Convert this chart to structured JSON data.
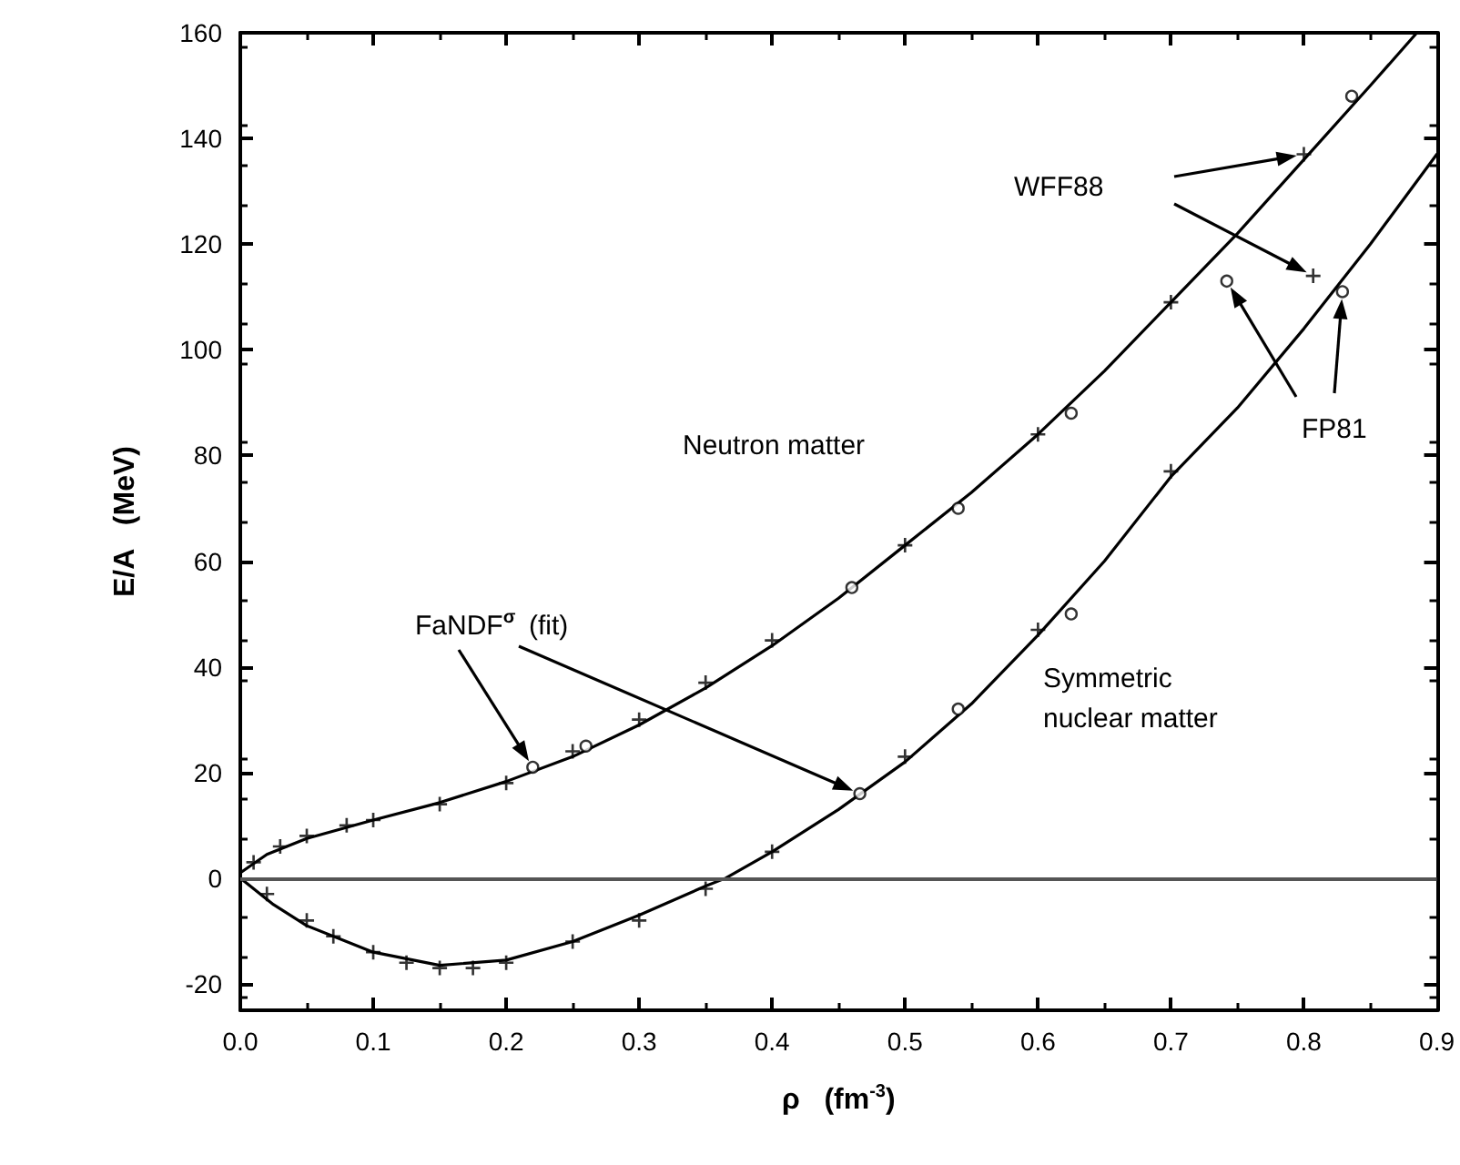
{
  "chart_data": {
    "type": "line",
    "xlabel": "ρ   (fm$^{-3}$)",
    "ylabel": "E/A   (MeV)",
    "xlim": [
      0,
      0.9
    ],
    "ylim": [
      -25,
      160
    ],
    "xticks": [
      {
        "value": 0,
        "label": "0.0"
      },
      {
        "value": 0.1,
        "label": "0.1"
      },
      {
        "value": 0.2,
        "label": "0.2"
      },
      {
        "value": 0.3,
        "label": "0.3"
      },
      {
        "value": 0.4,
        "label": "0.4"
      },
      {
        "value": 0.5,
        "label": "0.5"
      },
      {
        "value": 0.6,
        "label": "0.6"
      },
      {
        "value": 0.7,
        "label": "0.7"
      },
      {
        "value": 0.8,
        "label": "0.8"
      },
      {
        "value": 0.9,
        "label": "0.9"
      }
    ],
    "yticks": [
      -20,
      0,
      20,
      40,
      60,
      80,
      100,
      120,
      140,
      160
    ],
    "grid": false,
    "legend": false,
    "line_style": "solid",
    "annotations": [
      "Neutron matter",
      "Symmetric nuclear matter",
      "FaNDF$^{σ}$ (fit)",
      "WFF88",
      "FP81"
    ],
    "ref_lines": [
      {
        "axis": "y",
        "value": 0,
        "color": "#555555"
      }
    ],
    "series": [
      {
        "color": "#000000",
        "marker": "none",
        "x": [
          0,
          0.02,
          0.05,
          0.1,
          0.15,
          0.2,
          0.25,
          0.3,
          0.35,
          0.4,
          0.45,
          0.5,
          0.55,
          0.6,
          0.65,
          0.7,
          0.75,
          0.8,
          0.85,
          0.885
        ],
        "values": [
          1,
          4.5,
          7.5,
          11,
          14.3,
          18.3,
          23,
          29,
          36,
          44,
          53,
          63,
          73,
          84,
          96,
          109,
          122,
          136,
          150,
          160
        ]
      },
      {
        "color": "#000000",
        "marker": "none",
        "x": [
          0,
          0.025,
          0.05,
          0.1,
          0.15,
          0.2,
          0.25,
          0.3,
          0.35,
          0.365,
          0.4,
          0.45,
          0.5,
          0.55,
          0.6,
          0.65,
          0.7,
          0.75,
          0.8,
          0.85,
          0.9
        ],
        "values": [
          0,
          -5,
          -9,
          -14,
          -16.5,
          -15.5,
          -12,
          -7,
          -1.5,
          0,
          5,
          13,
          22,
          33,
          46,
          60,
          76,
          89,
          104,
          120,
          137
        ]
      },
      {
        "type": "scatter",
        "color": "#000000",
        "marker": "cross",
        "x": [
          0.8,
          0.7,
          0.6,
          0.5,
          0.4,
          0.35,
          0.3,
          0.25,
          0.2,
          0.15,
          0.1,
          0.08,
          0.05,
          0.03,
          0.01,
          0.807,
          0.7,
          0.6,
          0.5,
          0.4,
          0.35,
          0.3,
          0.25,
          0.2,
          0.175,
          0.15,
          0.125,
          0.1,
          0.07,
          0.05,
          0.02
        ],
        "values": [
          137,
          109,
          84,
          63,
          45,
          37,
          30,
          24,
          18,
          14,
          11,
          10,
          8,
          6,
          3,
          114,
          77,
          47,
          23,
          5,
          -2,
          -8,
          -12,
          -16,
          -17,
          -17,
          -16,
          -14,
          -11,
          -8,
          -3
        ]
      },
      {
        "type": "scatter",
        "color": "#000000",
        "marker": "circle",
        "x": [
          0.836,
          0.742,
          0.625,
          0.54,
          0.46,
          0.26,
          0.22,
          0.829,
          0.625,
          0.54,
          0.466
        ],
        "values": [
          148,
          113,
          88,
          70,
          55,
          25,
          21,
          111,
          50,
          32,
          16
        ]
      }
    ]
  }
}
